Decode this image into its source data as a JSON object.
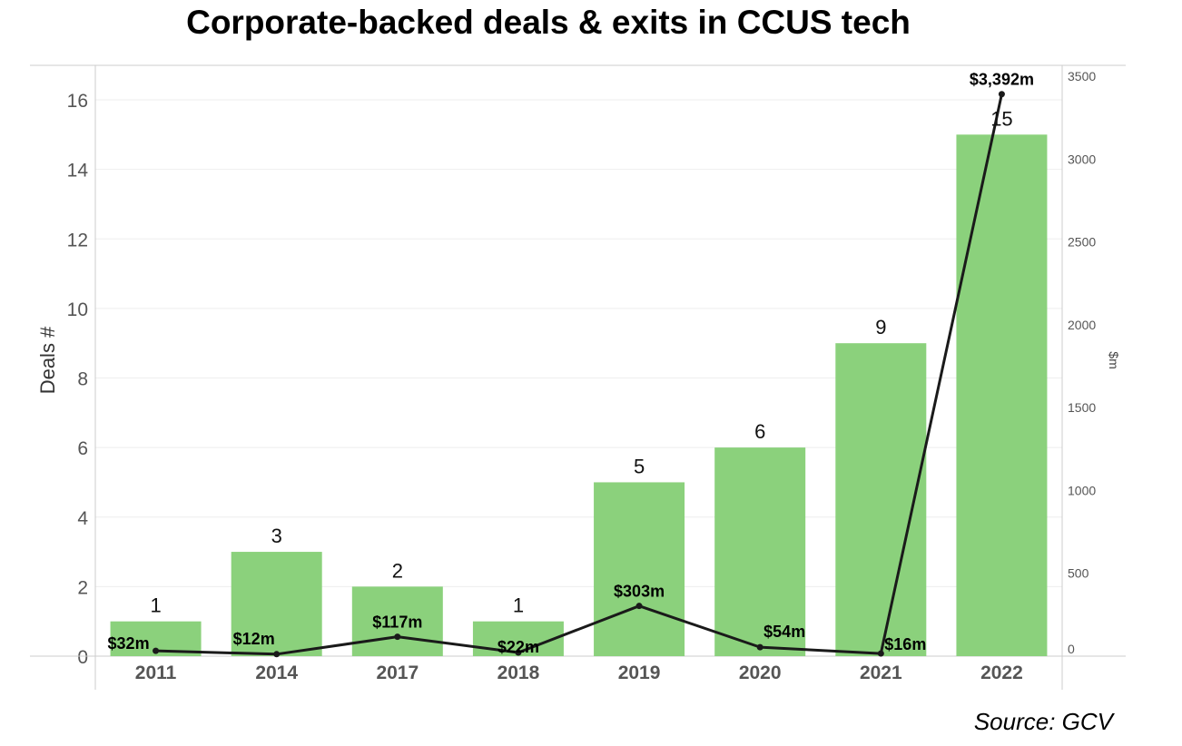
{
  "colors": {
    "bar": "#8bd17c",
    "line": "#1a1a1a",
    "grid": "#eeeeee",
    "axis": "#cccccc"
  },
  "source": "Source: GCV",
  "chart_data": {
    "type": "bar",
    "title": "Corporate-backed deals & exits in CCUS tech",
    "categories": [
      "2011",
      "2014",
      "2017",
      "2018",
      "2019",
      "2020",
      "2021",
      "2022"
    ],
    "series": [
      {
        "type": "bar",
        "axis": "left",
        "values": [
          1,
          3,
          2,
          1,
          5,
          6,
          9,
          15
        ]
      },
      {
        "type": "line",
        "axis": "right",
        "values": [
          32,
          12,
          117,
          22,
          303,
          54,
          16,
          3392
        ],
        "labels": [
          "$32m",
          "$12m",
          "$117m",
          "$22m",
          "$303m",
          "$54m",
          "$16m",
          "$3,392m"
        ]
      }
    ],
    "ylabel": "Deals #",
    "y2label": "$m",
    "ylim": [
      0,
      16
    ],
    "y2lim": [
      0,
      3500
    ],
    "yticks": [
      "0",
      "2",
      "4",
      "6",
      "8",
      "10",
      "12",
      "14",
      "16"
    ],
    "y2ticks": [
      "0",
      "500",
      "1000",
      "1500",
      "2000",
      "2500",
      "3000",
      "3500"
    ],
    "grid": true,
    "legend": "none"
  }
}
